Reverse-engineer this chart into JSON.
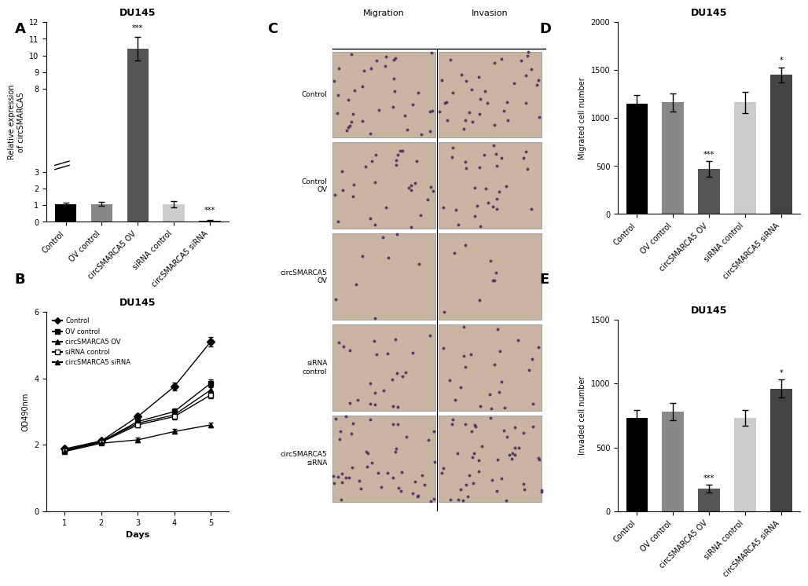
{
  "panel_A": {
    "title": "DU145",
    "ylabel": "Relative expression\nof circSMARCA5",
    "categories": [
      "Control",
      "OV control",
      "circSMARCA5 OV",
      "siRNA control",
      "circSMARCA5 siRNA"
    ],
    "values": [
      1.05,
      1.08,
      10.4,
      1.05,
      0.08
    ],
    "errors": [
      0.12,
      0.12,
      0.7,
      0.18,
      0.05
    ],
    "colors": [
      "#000000",
      "#888888",
      "#555555",
      "#cccccc",
      "#333333"
    ],
    "ylim": [
      0,
      12
    ],
    "yticks": [
      0,
      1,
      2,
      3,
      8,
      9,
      10,
      11,
      12
    ],
    "sig": [
      "",
      "",
      "***",
      "",
      "***"
    ],
    "sig_positions": [
      null,
      null,
      10.4,
      null,
      0.08
    ]
  },
  "panel_B": {
    "title": "DU145",
    "xlabel": "Days",
    "ylabel": "OD490nm",
    "days": [
      1,
      2,
      3,
      4,
      5
    ],
    "series": {
      "Control": {
        "values": [
          1.88,
          2.12,
          2.85,
          3.75,
          5.1
        ],
        "errors": [
          0.05,
          0.06,
          0.08,
          0.12,
          0.15
        ],
        "marker": "D"
      },
      "OV control": {
        "values": [
          1.85,
          2.1,
          2.7,
          3.0,
          3.85
        ],
        "errors": [
          0.05,
          0.05,
          0.08,
          0.1,
          0.12
        ],
        "marker": "s"
      },
      "circSMARCA5 OV": {
        "values": [
          1.83,
          2.1,
          2.65,
          2.9,
          3.65
        ],
        "errors": [
          0.04,
          0.05,
          0.08,
          0.09,
          0.1
        ],
        "marker": "^"
      },
      "siRNA control": {
        "values": [
          1.82,
          2.08,
          2.6,
          2.85,
          3.5
        ],
        "errors": [
          0.05,
          0.05,
          0.07,
          0.08,
          0.09
        ],
        "marker": "s"
      },
      "circSMARCA5 siRNA": {
        "values": [
          1.8,
          2.05,
          2.15,
          2.4,
          2.6
        ],
        "errors": [
          0.04,
          0.05,
          0.06,
          0.07,
          0.08
        ],
        "marker": "^"
      }
    },
    "ylim": [
      0,
      6
    ],
    "yticks": [
      0,
      2,
      4,
      6
    ]
  },
  "panel_D": {
    "title": "DU145",
    "ylabel": "Migrated cell number",
    "categories": [
      "Control",
      "OV control",
      "circSMARCA5 OV",
      "siRNA control",
      "circSMARCA5 siRNA"
    ],
    "values": [
      1150,
      1165,
      470,
      1165,
      1450
    ],
    "errors": [
      90,
      95,
      80,
      110,
      80
    ],
    "colors": [
      "#000000",
      "#888888",
      "#555555",
      "#cccccc",
      "#444444"
    ],
    "ylim": [
      0,
      2000
    ],
    "yticks": [
      0,
      500,
      1000,
      1500,
      2000
    ],
    "sig": [
      "",
      "",
      "***",
      "",
      "*"
    ]
  },
  "panel_E": {
    "title": "DU145",
    "ylabel": "Invaded cell number",
    "categories": [
      "Control",
      "OV control",
      "circSMARCA5 OV",
      "siRNA control",
      "circSMARCA5 siRNA"
    ],
    "values": [
      730,
      780,
      180,
      730,
      960
    ],
    "errors": [
      60,
      65,
      30,
      60,
      70
    ],
    "colors": [
      "#000000",
      "#888888",
      "#555555",
      "#cccccc",
      "#444444"
    ],
    "ylim": [
      0,
      1500
    ],
    "yticks": [
      0,
      500,
      1000,
      1500
    ],
    "sig": [
      "",
      "",
      "***",
      "",
      "*"
    ]
  },
  "panel_C": {
    "row_labels": [
      "Control",
      "Control\nOV",
      "circSMARCA5\nOV",
      "siRNA\ncontrol",
      "circSMARCA5\nsiRNA"
    ],
    "col_labels": [
      "Migration",
      "Invasion"
    ],
    "bg_color": "#c8b4a0"
  }
}
